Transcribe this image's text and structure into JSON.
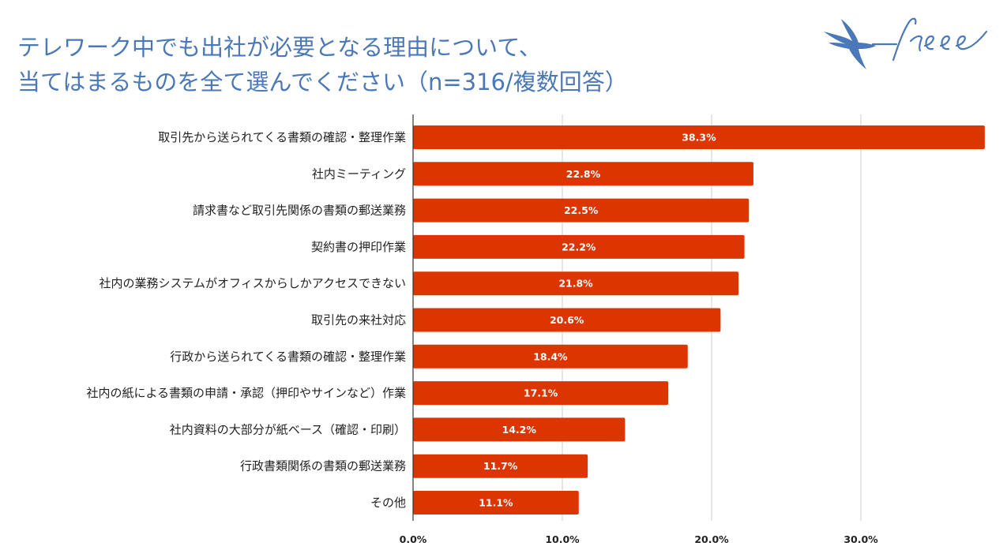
{
  "brand": {
    "logo_text": "freee",
    "colors": {
      "logo": "#4a78b8",
      "title": "#4a78b8"
    }
  },
  "chart_data": {
    "type": "bar",
    "orientation": "horizontal",
    "title": [
      "テレワーク中でも出社が必要となる理由について、",
      "当てはまるものを全て選んでください（n=316/複数回答）"
    ],
    "categories": [
      "取引先から送られてくる書類の確認・整理作業",
      "社内ミーティング",
      "請求書など取引先関係の書類の郵送業務",
      "契約書の押印作業",
      "社内の業務システムがオフィスからしかアクセスできない",
      "取引先の来社対応",
      "行政から送られてくる書類の確認・整理作業",
      "社内の紙による書類の申請・承認（押印やサインなど）作業",
      "社内資料の大部分が紙ベース（確認・印刷）",
      "行政書類関係の書類の郵送業務",
      "その他"
    ],
    "values": [
      38.3,
      22.8,
      22.5,
      22.2,
      21.8,
      20.6,
      18.4,
      17.1,
      14.2,
      11.7,
      11.1
    ],
    "value_labels": [
      "38.3%",
      "22.8%",
      "22.5%",
      "22.2%",
      "21.8%",
      "20.6%",
      "18.4%",
      "17.1%",
      "14.2%",
      "11.7%",
      "11.1%"
    ],
    "xlim": [
      0,
      40
    ],
    "ticks": [
      0,
      10,
      20,
      30
    ],
    "tick_labels": [
      "0.0%",
      "10.0%",
      "20.0%",
      "30.0%"
    ],
    "grid": true,
    "bar_color": "#dd3500",
    "grid_color": "#cfcfcf"
  }
}
